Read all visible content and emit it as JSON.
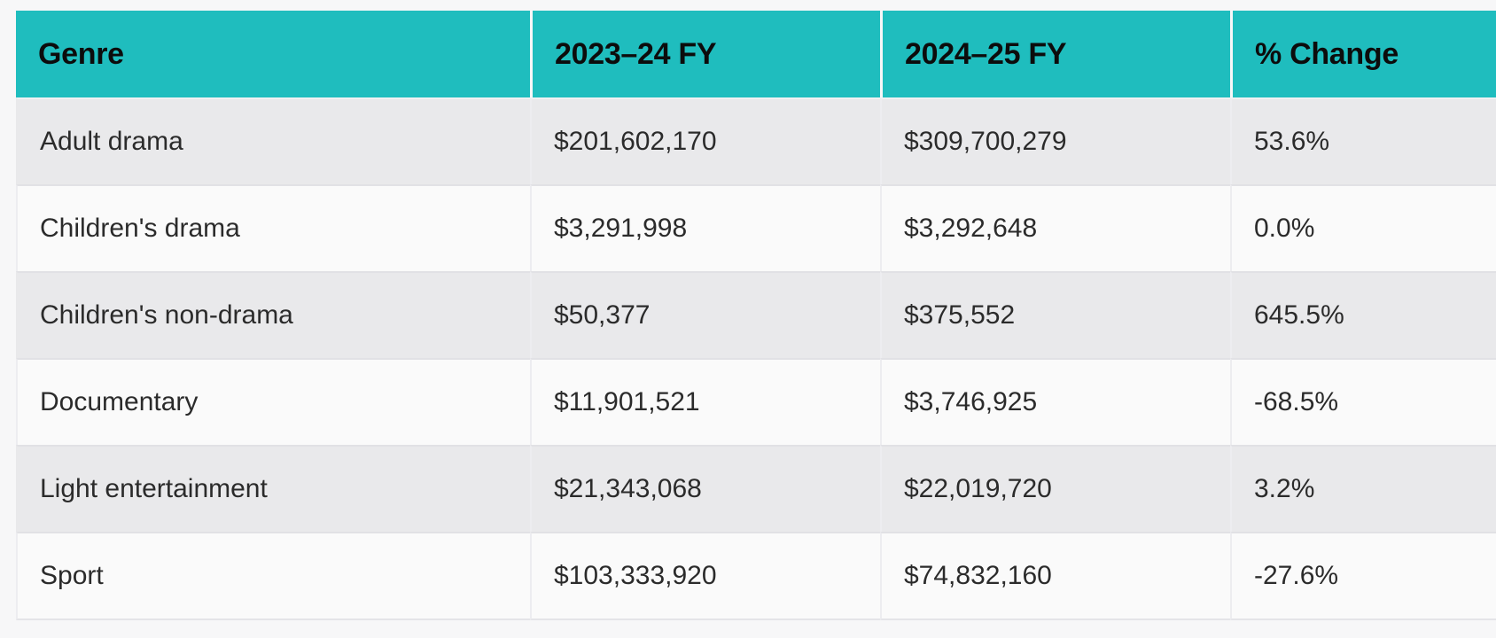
{
  "colors": {
    "header_bg": "#1fbdbe",
    "header_text": "#0c0c0c",
    "row_dark_bg": "#e9e9eb",
    "row_light_bg": "#fafafa",
    "body_text": "#2b2b2b",
    "page_bg": "#f7f7f8"
  },
  "chart_data": {
    "type": "table",
    "columns": [
      "Genre",
      "2023–24 FY",
      "2024–25 FY",
      "% Change"
    ],
    "rows": [
      {
        "genre": "Adult drama",
        "fy_2023_24": "$201,602,170",
        "fy_2024_25": "$309,700,279",
        "pct_change": "53.6%"
      },
      {
        "genre": "Children's drama",
        "fy_2023_24": "$3,291,998",
        "fy_2024_25": "$3,292,648",
        "pct_change": "0.0%"
      },
      {
        "genre": "Children's non-drama",
        "fy_2023_24": "$50,377",
        "fy_2024_25": "$375,552",
        "pct_change": "645.5%"
      },
      {
        "genre": "Documentary",
        "fy_2023_24": "$11,901,521",
        "fy_2024_25": "$3,746,925",
        "pct_change": "-68.5%"
      },
      {
        "genre": "Light entertainment",
        "fy_2023_24": "$21,343,068",
        "fy_2024_25": "$22,019,720",
        "pct_change": "3.2%"
      },
      {
        "genre": "Sport",
        "fy_2023_24": "$103,333,920",
        "fy_2024_25": "$74,832,160",
        "pct_change": "-27.6%"
      }
    ]
  }
}
